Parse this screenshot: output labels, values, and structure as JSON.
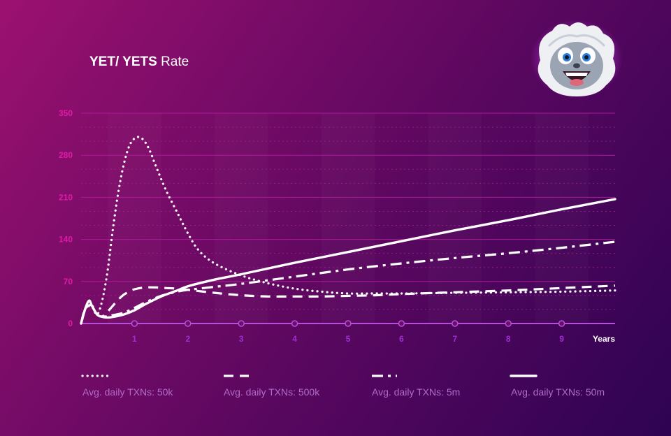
{
  "title": {
    "bold": "YET/ YETS",
    "rest": "Rate"
  },
  "chart_data": {
    "type": "line",
    "title": "YET/ YETS Rate",
    "xlabel": "Years",
    "ylabel": "",
    "xlim": [
      0,
      10
    ],
    "ylim": [
      0,
      350
    ],
    "yticks": [
      0,
      70,
      140,
      210,
      280,
      350
    ],
    "xticks": [
      1,
      2,
      3,
      4,
      5,
      6,
      7,
      8,
      9
    ],
    "grid": true,
    "legend_position": "bottom",
    "series": [
      {
        "name": "Avg. daily TXNs: 50k",
        "style": "dotted",
        "x": [
          0,
          0.08,
          0.2,
          0.3,
          0.4,
          0.5,
          0.6,
          0.7,
          0.8,
          0.9,
          1.0,
          1.1,
          1.2,
          1.3,
          1.4,
          1.6,
          1.8,
          2.0,
          2.2,
          2.5,
          3.0,
          3.5,
          4.0,
          4.5,
          5.0,
          5.5,
          6.0,
          7.0,
          8.0,
          9.0,
          10.0
        ],
        "y": [
          0,
          25,
          28,
          15,
          40,
          90,
          160,
          220,
          265,
          295,
          308,
          310,
          302,
          285,
          262,
          220,
          185,
          150,
          122,
          100,
          80,
          67,
          58,
          53,
          50,
          50,
          50,
          51,
          52,
          53,
          55
        ]
      },
      {
        "name": "Avg. daily TXNs: 500k",
        "style": "dashed",
        "x": [
          0,
          0.08,
          0.2,
          0.3,
          0.4,
          0.5,
          0.6,
          0.7,
          0.8,
          0.9,
          1.0,
          1.2,
          1.4,
          1.6,
          1.8,
          2.0,
          2.5,
          3.0,
          3.5,
          4.0,
          4.5,
          5.0,
          5.5,
          6.0,
          7.0,
          8.0,
          9.0,
          10.0
        ],
        "y": [
          0,
          25,
          30,
          15,
          12,
          20,
          30,
          40,
          48,
          53,
          57,
          60,
          60,
          59,
          58,
          56,
          51,
          47,
          45,
          45,
          45,
          46,
          47,
          49,
          52,
          55,
          59,
          63
        ]
      },
      {
        "name": "Avg. daily TXNs: 5m",
        "style": "dashdot",
        "x": [
          0,
          0.08,
          0.2,
          0.3,
          0.4,
          0.5,
          0.6,
          0.8,
          1.0,
          1.2,
          1.5,
          1.8,
          2.0,
          2.5,
          3.0,
          4.0,
          5.0,
          6.0,
          7.0,
          8.0,
          9.0,
          10.0
        ],
        "y": [
          0,
          25,
          28,
          15,
          12,
          12,
          14,
          18,
          26,
          35,
          46,
          53,
          56,
          61,
          66,
          78,
          90,
          100,
          109,
          117,
          126,
          136
        ]
      },
      {
        "name": "Avg. daily TXNs: 50m",
        "style": "solid",
        "x": [
          0,
          0.08,
          0.15,
          0.2,
          0.3,
          0.4,
          0.5,
          0.6,
          0.8,
          1.0,
          1.2,
          1.5,
          1.8,
          2.0,
          2.5,
          3.0,
          4.0,
          5.0,
          6.0,
          7.0,
          8.0,
          9.0,
          10.0
        ],
        "y": [
          0,
          25,
          38,
          30,
          15,
          11,
          10,
          11,
          15,
          22,
          32,
          45,
          55,
          62,
          73,
          82,
          101,
          119,
          137,
          155,
          172,
          190,
          207
        ]
      }
    ]
  },
  "colors": {
    "tick": "#e01aa8",
    "axis": "#b74fd8",
    "line": "#ffffff",
    "grid_solid": "#b0189a",
    "grid_dotted": "#a0238e",
    "legend_text": "#b06cc8"
  },
  "mascot": {
    "icon": "yeti-mascot-icon"
  }
}
